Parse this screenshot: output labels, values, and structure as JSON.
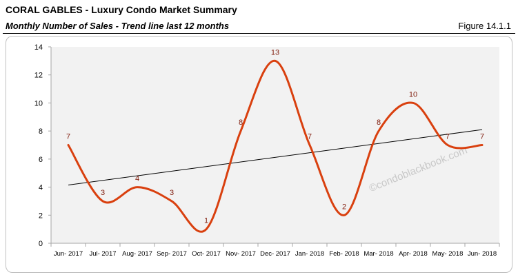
{
  "header": {
    "title": "CORAL GABLES - Luxury Condo Market Summary",
    "subtitle": "Monthly Number of Sales - Trend line last 12 months",
    "figure": "Figure 14.1.1"
  },
  "watermark": "©condoblackbook.com",
  "colors": {
    "series": "#d9400f",
    "label": "#7f1a0a",
    "trend": "#000000",
    "plot_bg": "#f2f2f2"
  },
  "chart_data": {
    "type": "line",
    "categories": [
      "Jun- 2017",
      "Jul- 2017",
      "Aug- 2017",
      "Sep- 2017",
      "Oct- 2017",
      "Nov- 2017",
      "Dec- 2017",
      "Jan- 2018",
      "Feb- 2018",
      "Mar- 2018",
      "Apr- 2018",
      "May- 2018",
      "Jun- 2018"
    ],
    "series": [
      {
        "values": [
          7,
          3,
          4,
          3,
          1,
          8,
          13,
          7,
          2,
          8,
          10,
          7,
          7
        ],
        "smooth": true,
        "data_labels": true
      }
    ],
    "trendline": {
      "type": "linear",
      "start": 4.15,
      "end": 8.1
    },
    "ylim": [
      0,
      14
    ],
    "yticks": [
      0,
      2,
      4,
      6,
      8,
      10,
      12,
      14
    ],
    "grid": false,
    "legend": "none"
  }
}
